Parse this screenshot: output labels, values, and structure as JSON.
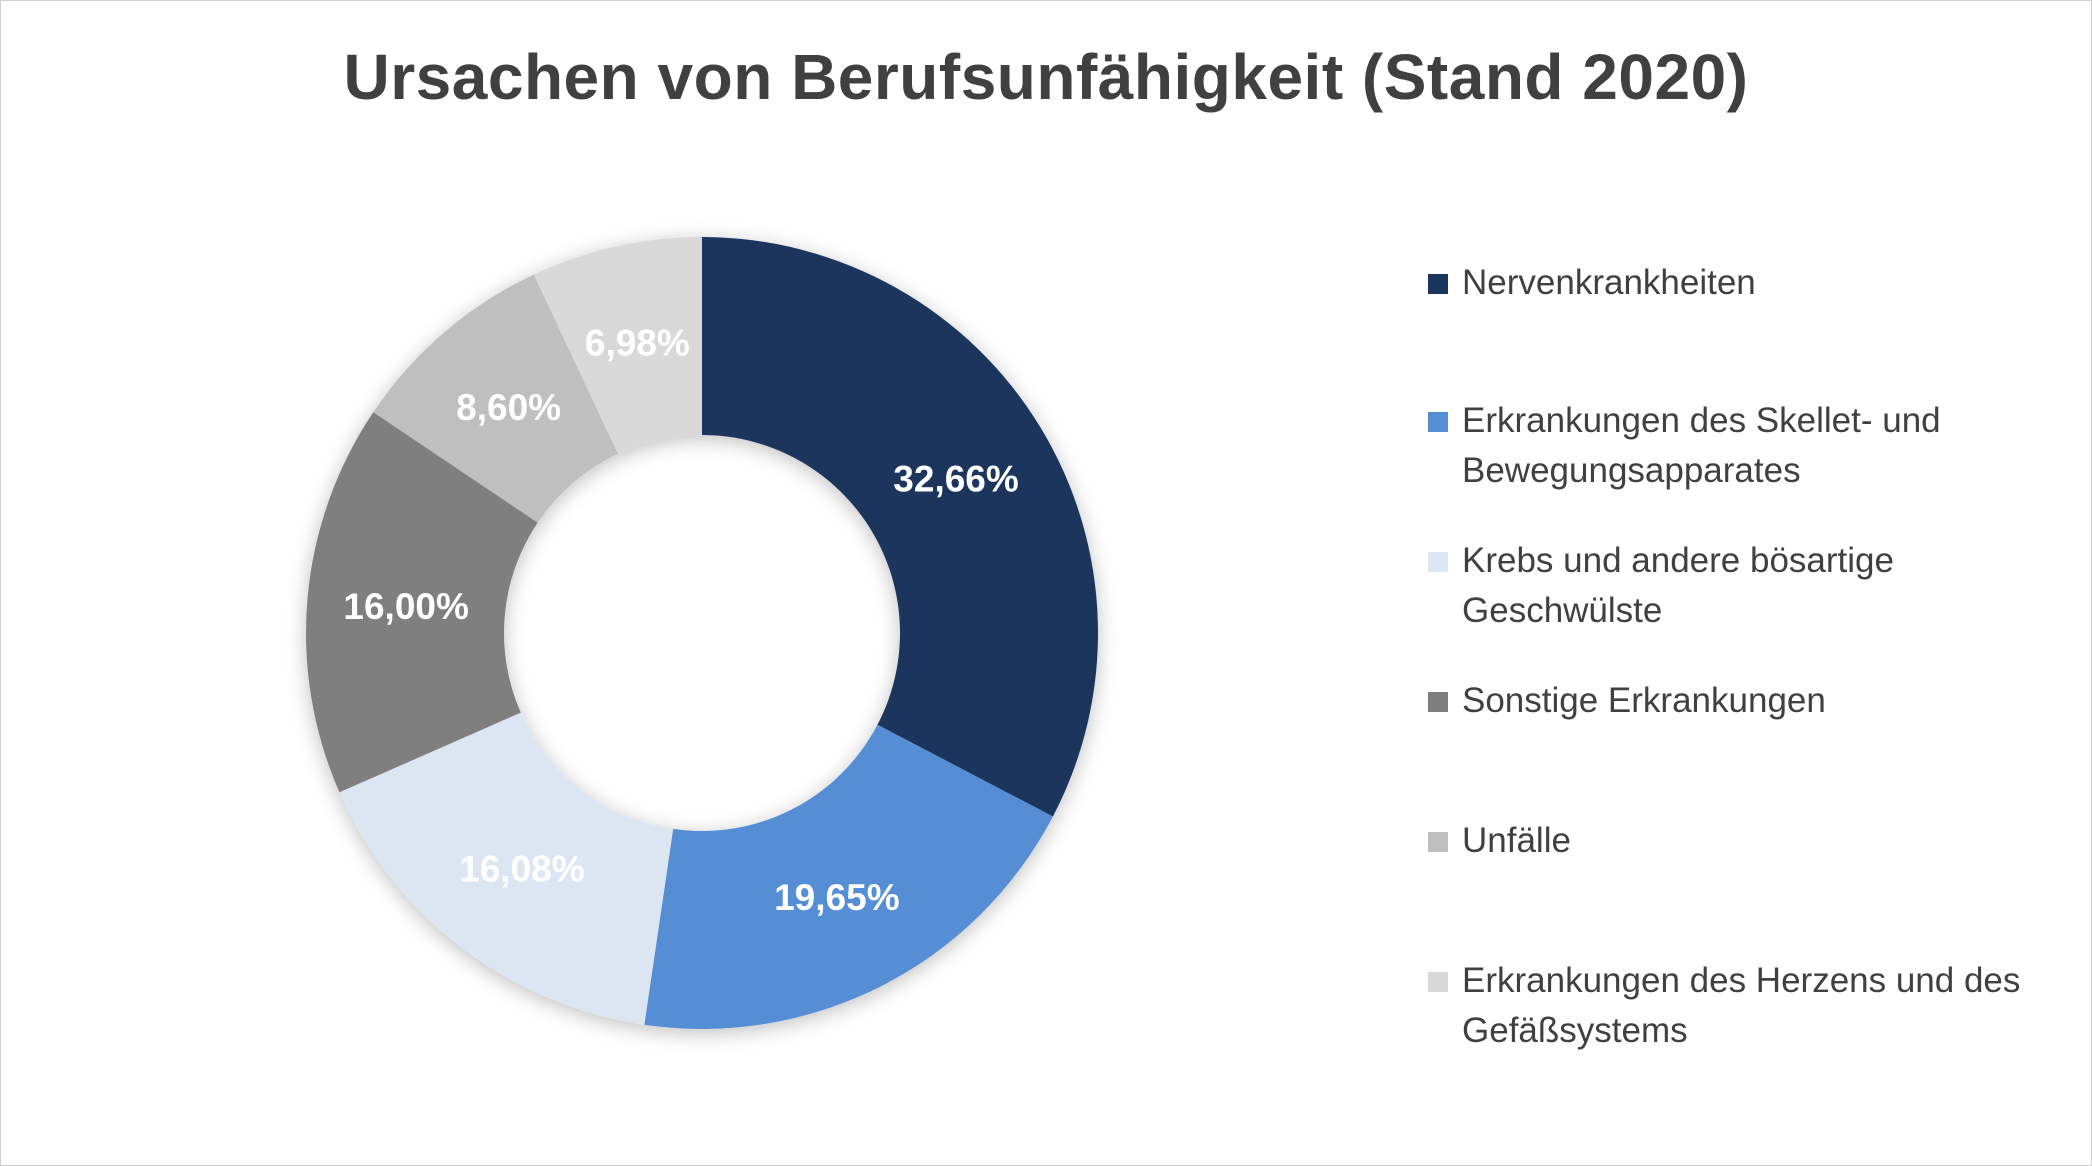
{
  "chart_data": {
    "type": "pie",
    "variant": "donut",
    "title": "Ursachen von Berufsunfähigkeit (Stand 2020)",
    "categories": [
      "Nervenkrankheiten",
      "Erkrankungen des Skellet- und Bewegungsapparates",
      "Krebs und andere bösartige Geschwülste",
      "Sonstige Erkrankungen",
      "Unfälle",
      "Erkrankungen des Herzens und des Gefäßsystems"
    ],
    "values": [
      32.66,
      19.65,
      16.08,
      16.0,
      8.6,
      6.98
    ],
    "data_labels": [
      "32,66%",
      "19,65%",
      "16,08%",
      "16,00%",
      "8,60%",
      "6,98%"
    ],
    "colors": [
      "#1b365d",
      "#558ed5",
      "#dce6f2",
      "#7f7f7f",
      "#bfbfbf",
      "#d9d9d9"
    ],
    "legend_position": "right"
  }
}
